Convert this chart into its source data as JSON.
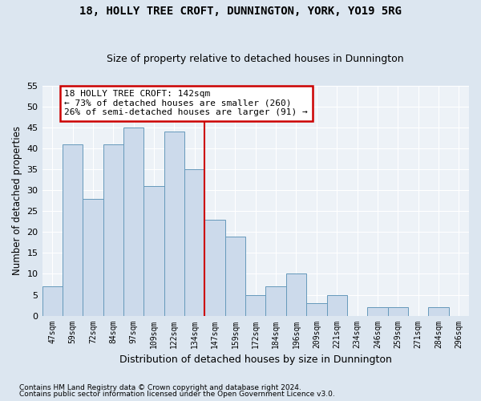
{
  "title": "18, HOLLY TREE CROFT, DUNNINGTON, YORK, YO19 5RG",
  "subtitle": "Size of property relative to detached houses in Dunnington",
  "xlabel": "Distribution of detached houses by size in Dunnington",
  "ylabel": "Number of detached properties",
  "categories": [
    "47sqm",
    "59sqm",
    "72sqm",
    "84sqm",
    "97sqm",
    "109sqm",
    "122sqm",
    "134sqm",
    "147sqm",
    "159sqm",
    "172sqm",
    "184sqm",
    "196sqm",
    "209sqm",
    "221sqm",
    "234sqm",
    "246sqm",
    "259sqm",
    "271sqm",
    "284sqm",
    "296sqm"
  ],
  "values": [
    7,
    41,
    28,
    41,
    45,
    31,
    44,
    35,
    23,
    19,
    5,
    7,
    10,
    3,
    5,
    0,
    2,
    2,
    0,
    2,
    0
  ],
  "bar_color": "#ccdaeb",
  "bar_edge_color": "#6699bb",
  "vline_color": "#cc0000",
  "annotation_title": "18 HOLLY TREE CROFT: 142sqm",
  "annotation_line1": "← 73% of detached houses are smaller (260)",
  "annotation_line2": "26% of semi-detached houses are larger (91) →",
  "annotation_box_color": "#cc0000",
  "ylim": [
    0,
    55
  ],
  "yticks": [
    0,
    5,
    10,
    15,
    20,
    25,
    30,
    35,
    40,
    45,
    50,
    55
  ],
  "footnote1": "Contains HM Land Registry data © Crown copyright and database right 2024.",
  "footnote2": "Contains public sector information licensed under the Open Government Licence v3.0.",
  "bg_color": "#dce6f0",
  "plot_bg_color": "#edf2f7",
  "grid_color": "#ffffff",
  "title_fontsize": 10,
  "subtitle_fontsize": 9
}
